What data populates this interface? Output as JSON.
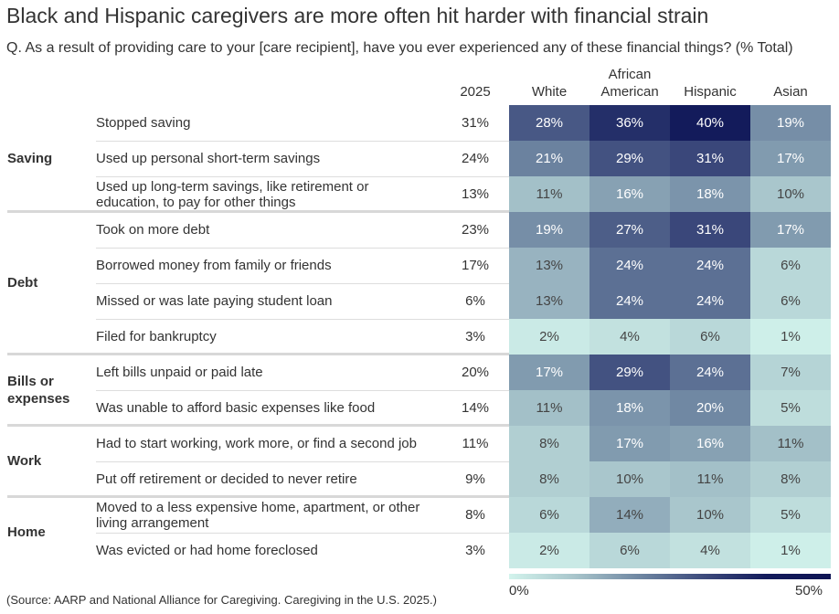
{
  "chart_data": {
    "type": "heatmap",
    "title": "Black and Hispanic caregivers are more often hit harder with financial strain",
    "subtitle": "Q. As a result of providing care to your [care recipient], have you ever experienced any of these financial things? (% Total)",
    "total_header": "2025",
    "columns": [
      "White",
      "African American",
      "Hispanic",
      "Asian"
    ],
    "groups": [
      {
        "name": "Saving",
        "rows": [
          {
            "label": "Stopped saving",
            "total": "31%",
            "values": [
              28,
              36,
              40,
              19
            ]
          },
          {
            "label": "Used up personal short-term savings",
            "total": "24%",
            "values": [
              21,
              29,
              31,
              17
            ]
          },
          {
            "label": "Used up long-term savings, like retirement or education, to pay for other things",
            "total": "13%",
            "values": [
              11,
              16,
              18,
              10
            ]
          }
        ]
      },
      {
        "name": "Debt",
        "rows": [
          {
            "label": "Took on more debt",
            "total": "23%",
            "values": [
              19,
              27,
              31,
              17
            ]
          },
          {
            "label": "Borrowed money from family or friends",
            "total": "17%",
            "values": [
              13,
              24,
              24,
              6
            ]
          },
          {
            "label": "Missed or was late paying student loan",
            "total": "6%",
            "values": [
              13,
              24,
              24,
              6
            ]
          },
          {
            "label": "Filed for bankruptcy",
            "total": "3%",
            "values": [
              2,
              4,
              6,
              1
            ]
          }
        ]
      },
      {
        "name": "Bills or expenses",
        "rows": [
          {
            "label": "Left bills unpaid or paid late",
            "total": "20%",
            "values": [
              17,
              29,
              24,
              7
            ]
          },
          {
            "label": "Was unable to afford basic expenses like food",
            "total": "14%",
            "values": [
              11,
              18,
              20,
              5
            ]
          }
        ]
      },
      {
        "name": "Work",
        "rows": [
          {
            "label": "Had to start working, work more, or find a second job",
            "total": "11%",
            "values": [
              8,
              17,
              16,
              11
            ]
          },
          {
            "label": "Put off retirement or decided to never retire",
            "total": "9%",
            "values": [
              8,
              10,
              11,
              8
            ]
          }
        ]
      },
      {
        "name": "Home",
        "rows": [
          {
            "label": "Moved to a less expensive home, apartment, or other living arrangement",
            "total": "8%",
            "values": [
              6,
              14,
              10,
              5
            ]
          },
          {
            "label": "Was evicted or had home foreclosed",
            "total": "3%",
            "values": [
              2,
              6,
              4,
              1
            ]
          }
        ]
      }
    ],
    "value_unit": "%",
    "color_scale": {
      "min": 0,
      "max": 50,
      "min_label": "0%",
      "max_label": "50%",
      "colors": [
        "#d2f3ec",
        "#a9c6cc",
        "#7088a3",
        "#3e4c7d",
        "#131b5b",
        "#0e1454"
      ]
    },
    "source": "(Source: AARP and National Alliance for Caregiving. Caregiving in the U.S. 2025.)"
  }
}
